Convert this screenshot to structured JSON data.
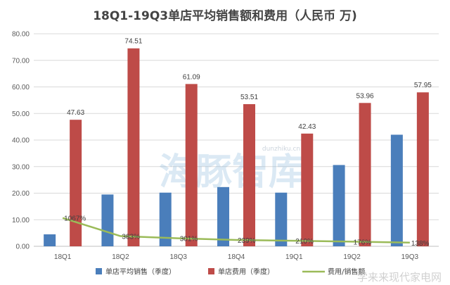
{
  "chart_data": {
    "type": "bar",
    "title": "18Q1-19Q3单店平均销售额和费用（人民币 万)",
    "categories": [
      "18Q1",
      "18Q2",
      "18Q3",
      "18Q4",
      "19Q1",
      "19Q2",
      "19Q3"
    ],
    "ylim": [
      0,
      80
    ],
    "yticks": [
      "0.00",
      "10.00",
      "20.00",
      "30.00",
      "40.00",
      "50.00",
      "60.00",
      "70.00",
      "80.00"
    ],
    "grid": true,
    "legend_position": "bottom",
    "series": [
      {
        "name": "单店平均销售（季度）",
        "type": "bar",
        "color": "#4a7ebb",
        "values": [
          4.5,
          19.5,
          20.2,
          22.3,
          20.2,
          30.6,
          42.0
        ]
      },
      {
        "name": "单店费用（季度）",
        "type": "bar",
        "color": "#be4b48",
        "values": [
          47.63,
          74.51,
          61.09,
          53.51,
          42.43,
          53.96,
          57.95
        ],
        "labels": [
          "47.63",
          "74.51",
          "61.09",
          "53.51",
          "42.43",
          "53.96",
          "57.95"
        ]
      },
      {
        "name": "费用/销售额",
        "type": "line",
        "color": "#9bbb59",
        "values": [
          10.67,
          3.83,
          3.01,
          2.39,
          2.1,
          1.76,
          1.38
        ],
        "labels": [
          "1067%",
          "383%",
          "301%",
          "239%",
          "210%",
          "176%",
          "138%"
        ]
      }
    ]
  },
  "watermark": {
    "brand_text": "海豚智库",
    "url_text": "dunzhiku.cn",
    "footer_text": "学来来现代家电网"
  }
}
